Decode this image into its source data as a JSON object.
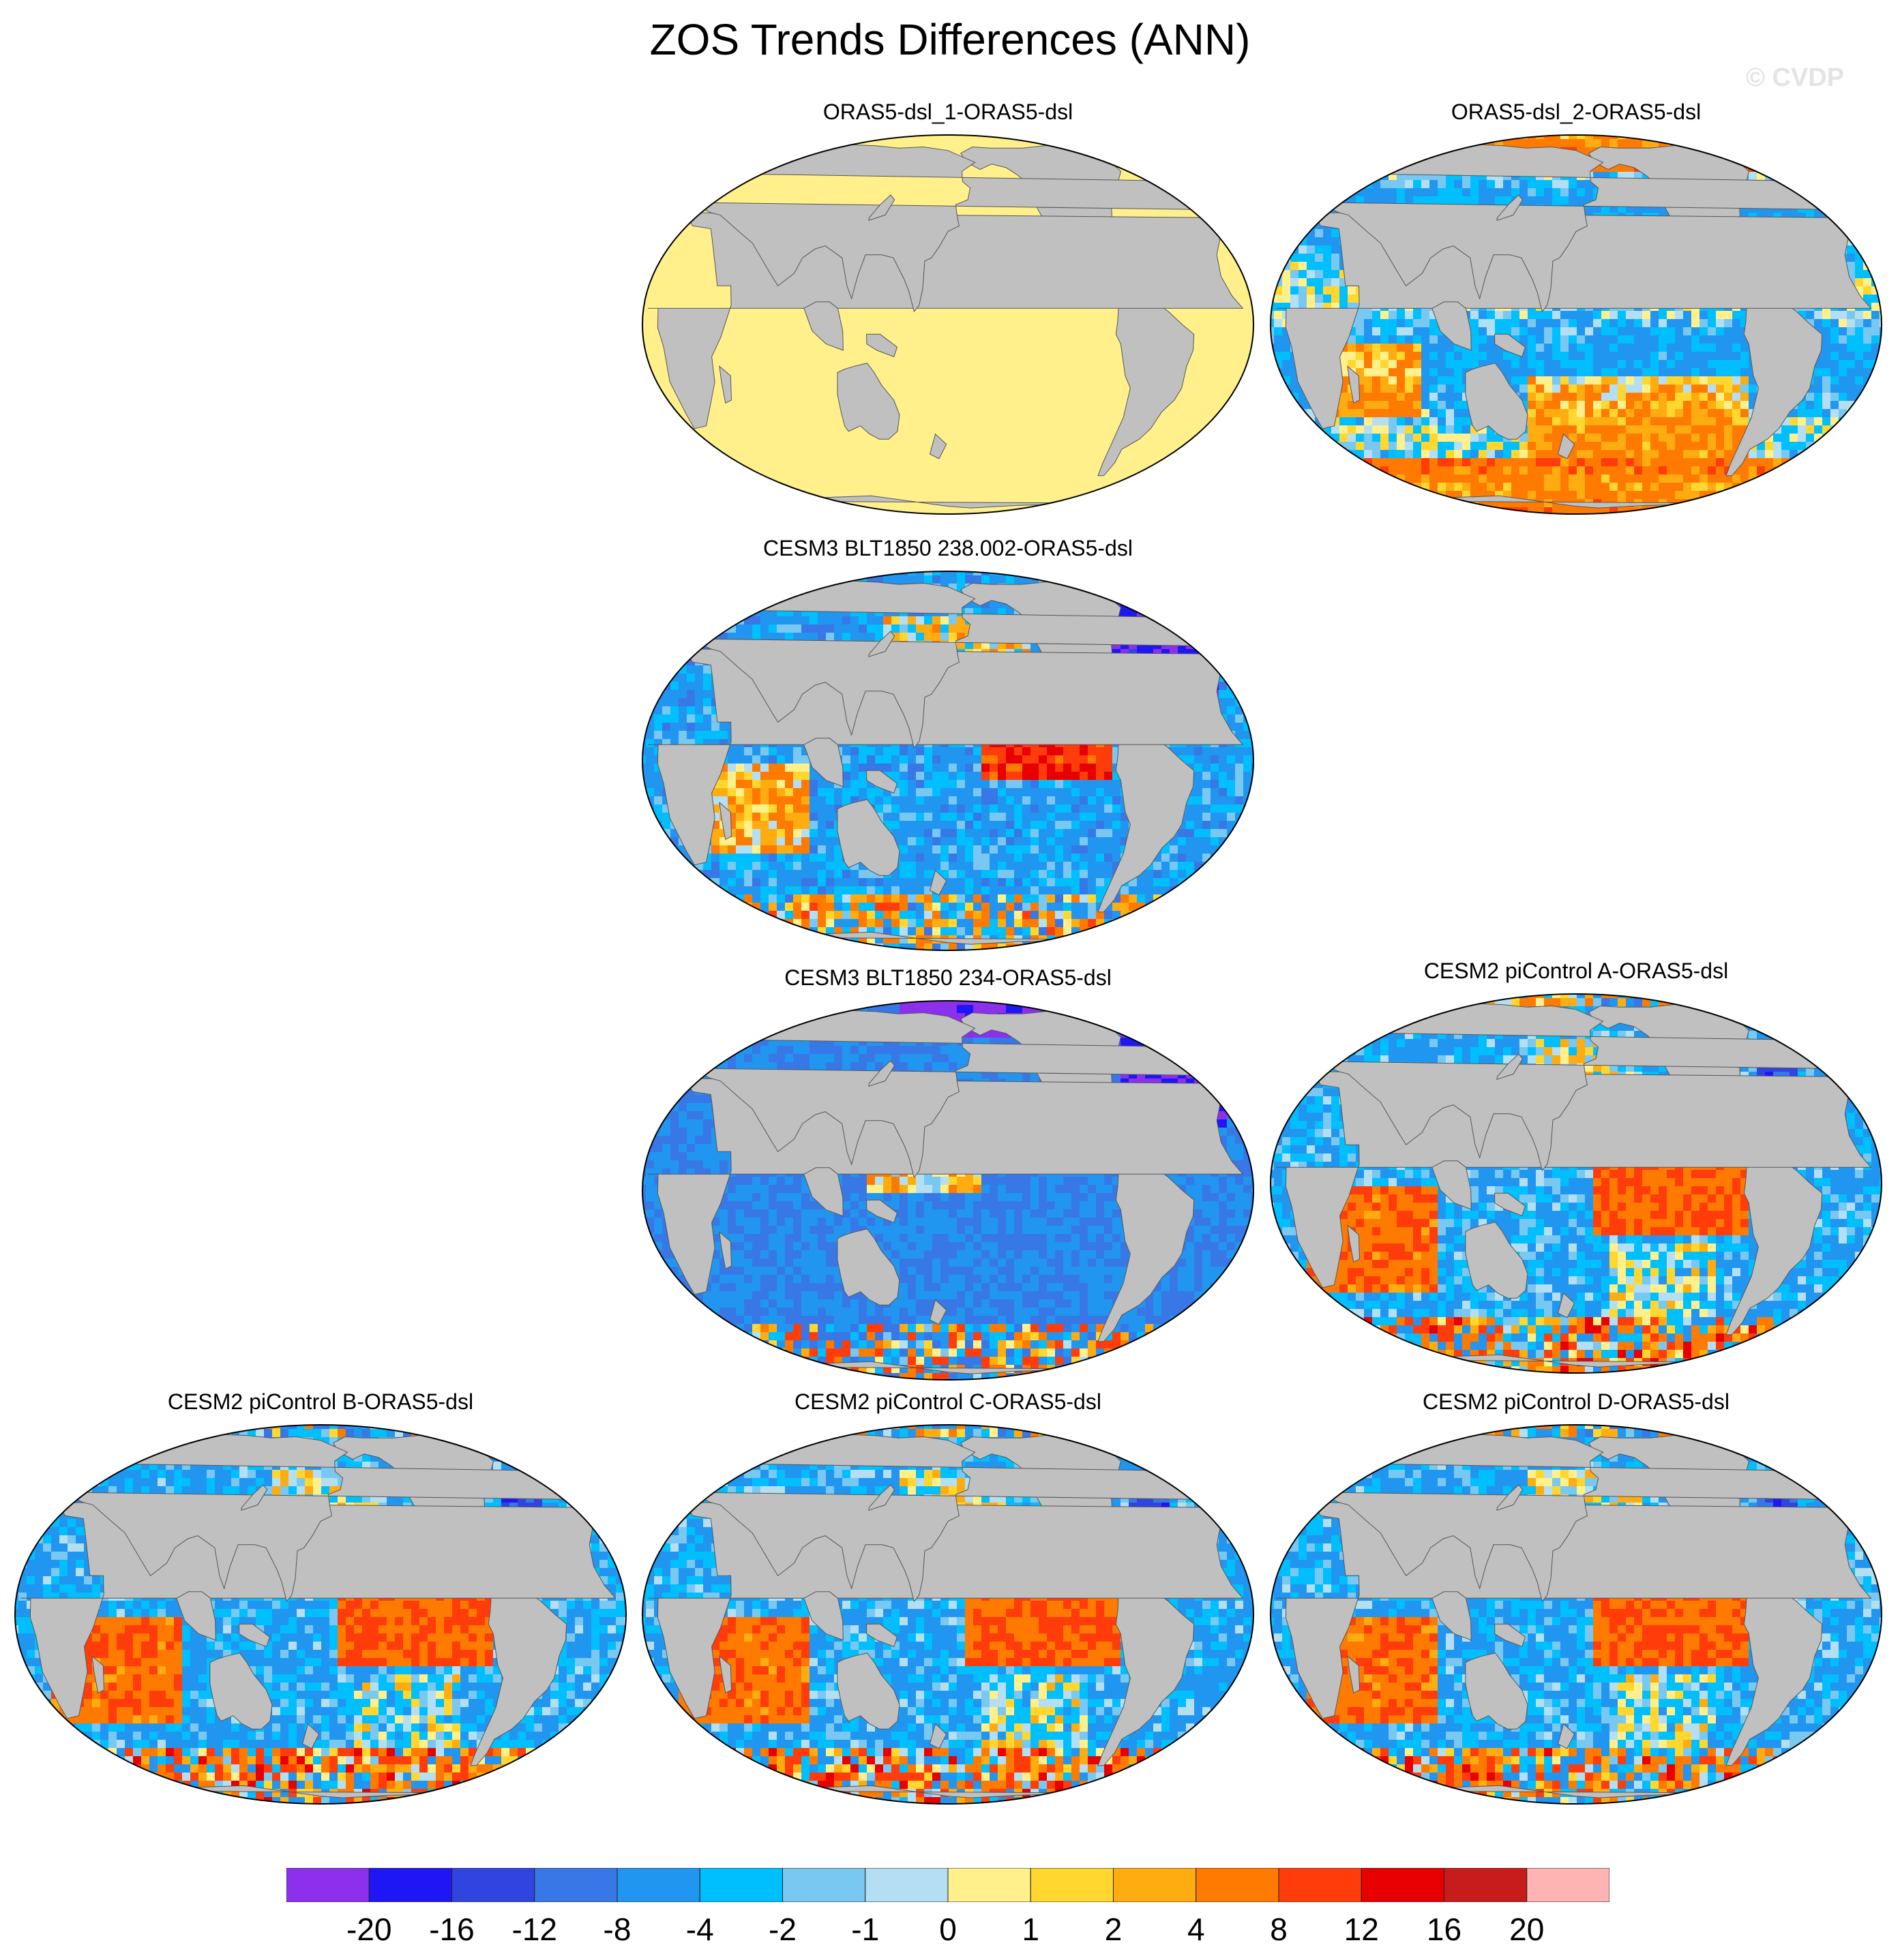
{
  "figure": {
    "title": "ZOS Trends Differences (ANN)",
    "watermark": "© CVDP",
    "land_color": "#c0c0c0",
    "ocean_edge_color": "#000000"
  },
  "panels": [
    {
      "title": "ORAS5-dsl_1-ORAS5-dsl",
      "pattern": "zero"
    },
    {
      "title": "ORAS5-dsl_2-ORAS5-dsl",
      "pattern": "oras2"
    },
    {
      "title": "CESM3 BLT1850 238.002-ORAS5-dsl",
      "pattern": "cesm3a"
    },
    {
      "title": "CESM3 BLT1850 234-ORAS5-dsl",
      "pattern": "cesm3b"
    },
    {
      "title": "CESM2 piControl A-ORAS5-dsl",
      "pattern": "cesm2"
    },
    {
      "title": "CESM2 piControl B-ORAS5-dsl",
      "pattern": "cesm2"
    },
    {
      "title": "CESM2 piControl C-ORAS5-dsl",
      "pattern": "cesm2"
    },
    {
      "title": "CESM2 piControl D-ORAS5-dsl",
      "pattern": "cesm2"
    }
  ],
  "colorbar": {
    "labels": [
      "-20",
      "-16",
      "-12",
      "-8",
      "-4",
      "-2",
      "-1",
      "0",
      "1",
      "2",
      "4",
      "8",
      "12",
      "16",
      "20"
    ],
    "colors": [
      "#8c30ee",
      "#1f16f5",
      "#3044e0",
      "#3778e6",
      "#2196f0",
      "#00bfff",
      "#78c8f2",
      "#b4dff2",
      "#fff08c",
      "#ffd72e",
      "#ffac10",
      "#ff7a00",
      "#ff3c0a",
      "#e80000",
      "#c81c1c",
      "#ffb4b4"
    ]
  }
}
